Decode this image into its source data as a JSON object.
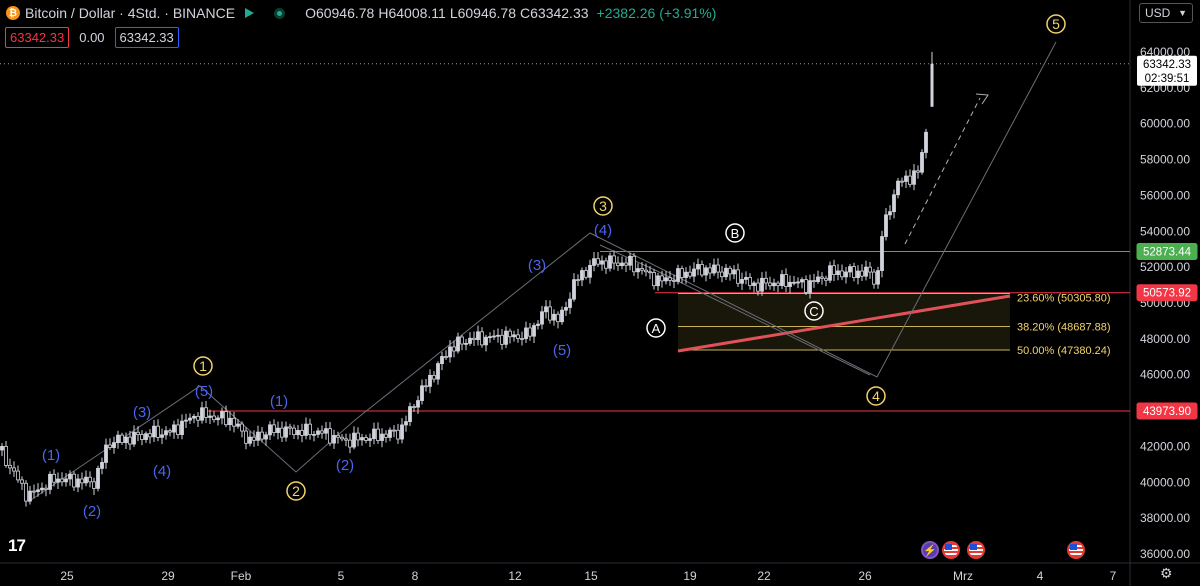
{
  "header": {
    "symbol": "Bitcoin / Dollar · 4Std. · BINANCE",
    "coin_glyph": "₿",
    "open": "O60946.78",
    "high": "H64008.11",
    "low": "L60946.78",
    "close": "C63342.33",
    "change": "+2382.26 (+3.91%)",
    "bid": "63342.33",
    "spread": "0.00",
    "ask": "63342.33"
  },
  "currency_select": {
    "value": "USD",
    "icon": "chevron-down-icon"
  },
  "price_axis": {
    "ticks": [
      "64000.00",
      "62000.00",
      "60000.00",
      "58000.00",
      "56000.00",
      "54000.00",
      "52000.00",
      "50000.00",
      "48000.00",
      "46000.00",
      "44000.00",
      "42000.00",
      "40000.00",
      "38000.00",
      "36000.00"
    ],
    "current_price": "63342.33",
    "countdown": "02:39:51",
    "level_labels": [
      "52873.44",
      "50573.92",
      "43973.90"
    ]
  },
  "time_axis": {
    "ticks": [
      "25",
      "29",
      "Feb",
      "5",
      "8",
      "12",
      "15",
      "19",
      "22",
      "26",
      "Mrz",
      "4",
      "7"
    ]
  },
  "fibonacci": [
    {
      "label": "23.60% (50305.80)",
      "price": 50305.8
    },
    {
      "label": "38.20% (48687.88)",
      "price": 48687.88
    },
    {
      "label": "50.00% (47380.24)",
      "price": 47380.24
    }
  ],
  "primary_waves": [
    "1",
    "2",
    "3",
    "4",
    "5"
  ],
  "corrective_waves": [
    "A",
    "B",
    "C"
  ],
  "sub_waves": [
    "(1)",
    "(2)",
    "(3)",
    "(4)",
    "(5)",
    "(1)",
    "(2)",
    "(3)",
    "(4)",
    "(5)"
  ],
  "colors": {
    "background": "#000000",
    "up": "#d1d4dc",
    "wave_primary": "#f3d36b",
    "wave_sub": "#4a64f0",
    "support_green": "#4caf50",
    "resistance_red": "#f23645",
    "trend_red": "#e0525a"
  },
  "branding": {
    "logo": "17"
  },
  "events": [
    "bolt-icon",
    "us-flag-icon",
    "us-flag-icon",
    "us-flag-icon"
  ],
  "settings_icon": "gear-icon"
}
